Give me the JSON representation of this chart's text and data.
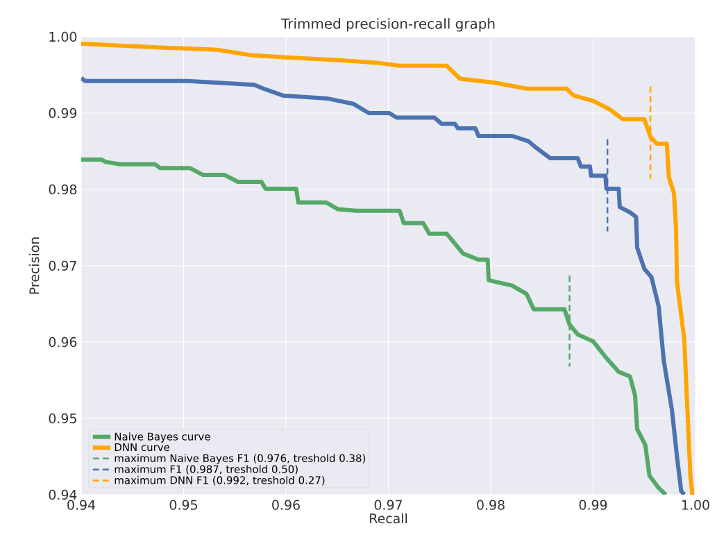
{
  "chart_data": {
    "type": "line",
    "title": "Trimmed precision-recall graph",
    "xlabel": "Recall",
    "ylabel": "Precision",
    "xlim": [
      0.94,
      1.0
    ],
    "ylim": [
      0.94,
      1.0
    ],
    "xticks": [
      0.94,
      0.95,
      0.96,
      0.97,
      0.98,
      0.99,
      {
        "value": 1.0,
        "label": "1.00"
      }
    ],
    "yticks": [
      0.94,
      0.95,
      0.96,
      0.97,
      0.98,
      0.99,
      {
        "value": 1.0,
        "label": "1.00"
      }
    ],
    "grid": true,
    "legend": "bottom left",
    "line_style": "solid",
    "series": [
      {
        "name": "Naive Bayes curve",
        "color": "#55a868",
        "x": [
          0.94,
          0.942,
          0.9424,
          0.9438,
          0.9472,
          0.9477,
          0.9506,
          0.9519,
          0.954,
          0.9553,
          0.9576,
          0.958,
          0.961,
          0.9612,
          0.9639,
          0.9651,
          0.9669,
          0.9711,
          0.9715,
          0.9734,
          0.974,
          0.9757,
          0.9773,
          0.9788,
          0.9797,
          0.9798,
          0.9821,
          0.9835,
          0.9842,
          0.9872,
          0.9877,
          0.9885,
          0.99,
          0.9913,
          0.9925,
          0.9936,
          0.9941,
          0.9943,
          0.9951,
          0.9955,
          0.9964,
          0.9971
        ],
        "values": [
          0.9839,
          0.9839,
          0.9836,
          0.9833,
          0.9833,
          0.9828,
          0.9828,
          0.9819,
          0.9819,
          0.981,
          0.981,
          0.9801,
          0.9801,
          0.9783,
          0.9783,
          0.9774,
          0.9772,
          0.9772,
          0.9756,
          0.9756,
          0.9742,
          0.9742,
          0.9716,
          0.9708,
          0.9708,
          0.9681,
          0.9674,
          0.9663,
          0.9643,
          0.9643,
          0.9623,
          0.961,
          0.9601,
          0.9579,
          0.9561,
          0.9555,
          0.953,
          0.9486,
          0.9465,
          0.9425,
          0.9409,
          0.94
        ]
      },
      {
        "color": "#4c72b0",
        "x": [
          0.94,
          0.9404,
          0.9504,
          0.9569,
          0.9578,
          0.9597,
          0.9641,
          0.9666,
          0.9681,
          0.9701,
          0.9708,
          0.9745,
          0.9752,
          0.9765,
          0.9768,
          0.9785,
          0.9788,
          0.9821,
          0.9837,
          0.9844,
          0.9858,
          0.9885,
          0.9888,
          0.9897,
          0.9898,
          0.9912,
          0.9913,
          0.9925,
          0.9926,
          0.9936,
          0.9942,
          0.9943,
          0.995,
          0.9957,
          0.9964,
          0.9969,
          0.9977,
          0.9982,
          0.9986,
          0.9989
        ],
        "values": [
          0.9946,
          0.9942,
          0.9942,
          0.9937,
          0.9932,
          0.9923,
          0.9919,
          0.9912,
          0.99,
          0.99,
          0.9894,
          0.9894,
          0.9886,
          0.9886,
          0.988,
          0.988,
          0.987,
          0.987,
          0.9863,
          0.9855,
          0.9841,
          0.9841,
          0.983,
          0.983,
          0.9818,
          0.9818,
          0.9801,
          0.9801,
          0.9777,
          0.977,
          0.9764,
          0.9724,
          0.9696,
          0.9685,
          0.9647,
          0.9576,
          0.9511,
          0.9449,
          0.9405,
          0.94
        ]
      },
      {
        "name": "DNN curve",
        "color": "#ffa500",
        "x": [
          0.94,
          0.9477,
          0.9533,
          0.9565,
          0.9601,
          0.9655,
          0.9688,
          0.9711,
          0.9757,
          0.977,
          0.9803,
          0.9835,
          0.9874,
          0.9881,
          0.99,
          0.9916,
          0.9929,
          0.995,
          0.9956,
          0.9962,
          0.9972,
          0.9974,
          0.9979,
          0.9981,
          0.9982,
          0.9989,
          0.9995,
          0.9997
        ],
        "values": [
          0.9991,
          0.9986,
          0.9983,
          0.9976,
          0.9973,
          0.9969,
          0.9966,
          0.9962,
          0.9962,
          0.9945,
          0.994,
          0.9932,
          0.9932,
          0.9923,
          0.9916,
          0.9905,
          0.9892,
          0.9892,
          0.9869,
          0.986,
          0.986,
          0.9816,
          0.9795,
          0.9748,
          0.9678,
          0.9604,
          0.9425,
          0.94
        ]
      },
      {
        "name": "maximum Naive Bayes F1 (0.976, treshold 0.38)",
        "color": "#55a868",
        "line_style": "dashed",
        "x": [
          0.9877,
          0.9877
        ],
        "values": [
          0.9687,
          0.9568
        ]
      },
      {
        "name": "maximum F1 (0.987, treshold 0.50)",
        "color": "#4c72b0",
        "line_style": "dashed",
        "x": [
          0.9914,
          0.9914
        ],
        "values": [
          0.9866,
          0.9745
        ]
      },
      {
        "name": "maximum DNN F1 (0.992, treshold 0.27)",
        "color": "#ffa500",
        "line_style": "dashed",
        "x": [
          0.9956,
          0.9956
        ],
        "values": [
          0.9935,
          0.9814
        ]
      }
    ]
  }
}
